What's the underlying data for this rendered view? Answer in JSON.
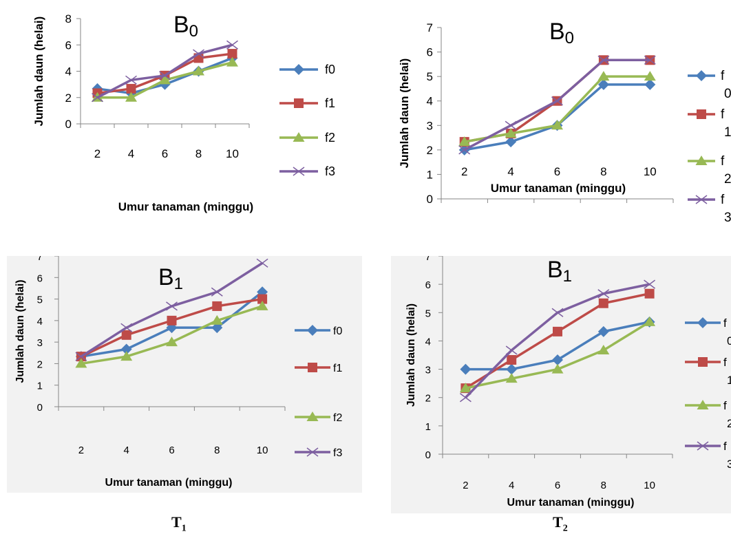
{
  "chart_data": [
    {
      "type": "line",
      "title": "B",
      "title_subscript": "0",
      "xlabel": "Umur tanaman (minggu)",
      "ylabel": "Jumlah daun (helai)",
      "x": [
        2,
        4,
        6,
        8,
        10
      ],
      "ylim": [
        0,
        8
      ],
      "yticks": [
        0,
        2,
        4,
        6,
        8
      ],
      "grid": false,
      "legend": "right",
      "series": [
        {
          "name": "f0",
          "color": "#4a7ebb",
          "marker": "diamond",
          "values": [
            2.67,
            2.33,
            3.0,
            4.0,
            5.0
          ]
        },
        {
          "name": "f1",
          "color": "#be4b48",
          "marker": "square",
          "values": [
            2.33,
            2.67,
            3.67,
            5.0,
            5.33
          ]
        },
        {
          "name": "f2",
          "color": "#98b954",
          "marker": "triangle",
          "values": [
            2.0,
            2.0,
            3.33,
            4.0,
            4.67
          ]
        },
        {
          "name": "f3",
          "color": "#7d5fa0",
          "marker": "x",
          "values": [
            2.0,
            3.33,
            3.67,
            5.33,
            6.0
          ]
        }
      ]
    },
    {
      "type": "line",
      "title": "B",
      "title_subscript": "0",
      "xlabel": "Umur tanaman (minggu)",
      "ylabel": "Jumlah daun (helai)",
      "x": [
        2,
        4,
        6,
        8,
        10
      ],
      "ylim": [
        0,
        7
      ],
      "yticks": [
        0,
        1,
        2,
        3,
        4,
        5,
        6,
        7
      ],
      "grid": false,
      "legend": "right (cut off)",
      "series": [
        {
          "name": "f0",
          "color": "#4a7ebb",
          "marker": "diamond",
          "values": [
            2.0,
            2.33,
            3.0,
            4.67,
            4.67
          ]
        },
        {
          "name": "f1",
          "color": "#be4b48",
          "marker": "square",
          "values": [
            2.33,
            2.67,
            4.0,
            5.67,
            5.67
          ]
        },
        {
          "name": "f2",
          "color": "#98b954",
          "marker": "triangle",
          "values": [
            2.33,
            2.67,
            3.0,
            5.0,
            5.0
          ]
        },
        {
          "name": "f3",
          "color": "#7d5fa0",
          "marker": "x",
          "values": [
            2.0,
            3.0,
            4.0,
            5.67,
            5.67
          ]
        }
      ]
    },
    {
      "type": "line",
      "title": "B",
      "title_subscript": "1",
      "xlabel": "Umur tanaman (minggu)",
      "ylabel": "Jumlah daun (helai)",
      "x": [
        2,
        4,
        6,
        8,
        10
      ],
      "ylim": [
        0,
        7
      ],
      "yticks": [
        0,
        1,
        2,
        3,
        4,
        5,
        6,
        7
      ],
      "grid": false,
      "legend": "right",
      "series": [
        {
          "name": "f0",
          "color": "#4a7ebb",
          "marker": "diamond",
          "values": [
            2.33,
            2.67,
            3.67,
            3.67,
            5.33
          ]
        },
        {
          "name": "f1",
          "color": "#be4b48",
          "marker": "square",
          "values": [
            2.33,
            3.33,
            4.0,
            4.67,
            5.0
          ]
        },
        {
          "name": "f2",
          "color": "#98b954",
          "marker": "triangle",
          "values": [
            2.0,
            2.33,
            3.0,
            4.0,
            4.67
          ]
        },
        {
          "name": "f3",
          "color": "#7d5fa0",
          "marker": "x",
          "values": [
            2.33,
            3.67,
            4.67,
            5.33,
            6.67
          ]
        }
      ]
    },
    {
      "type": "line",
      "title": "B",
      "title_subscript": "1",
      "xlabel": "Umur tanaman (minggu)",
      "ylabel": "Jumlah daun (helai)",
      "x": [
        2,
        4,
        6,
        8,
        10
      ],
      "ylim": [
        0,
        7
      ],
      "yticks": [
        0,
        1,
        2,
        3,
        4,
        5,
        6,
        7
      ],
      "grid": false,
      "legend": "right (cut off)",
      "series": [
        {
          "name": "f0",
          "color": "#4a7ebb",
          "marker": "diamond",
          "values": [
            3.0,
            3.0,
            3.33,
            4.33,
            4.67
          ]
        },
        {
          "name": "f1",
          "color": "#be4b48",
          "marker": "square",
          "values": [
            2.33,
            3.33,
            4.33,
            5.33,
            5.67
          ]
        },
        {
          "name": "f2",
          "color": "#98b954",
          "marker": "triangle",
          "values": [
            2.33,
            2.67,
            3.0,
            3.67,
            4.67
          ]
        },
        {
          "name": "f3",
          "color": "#7d5fa0",
          "marker": "x",
          "values": [
            2.0,
            3.67,
            5.0,
            5.67,
            6.0
          ]
        }
      ]
    }
  ],
  "figure_labels": [
    {
      "text": "T",
      "sub": "1"
    },
    {
      "text": "T",
      "sub": "2"
    }
  ]
}
